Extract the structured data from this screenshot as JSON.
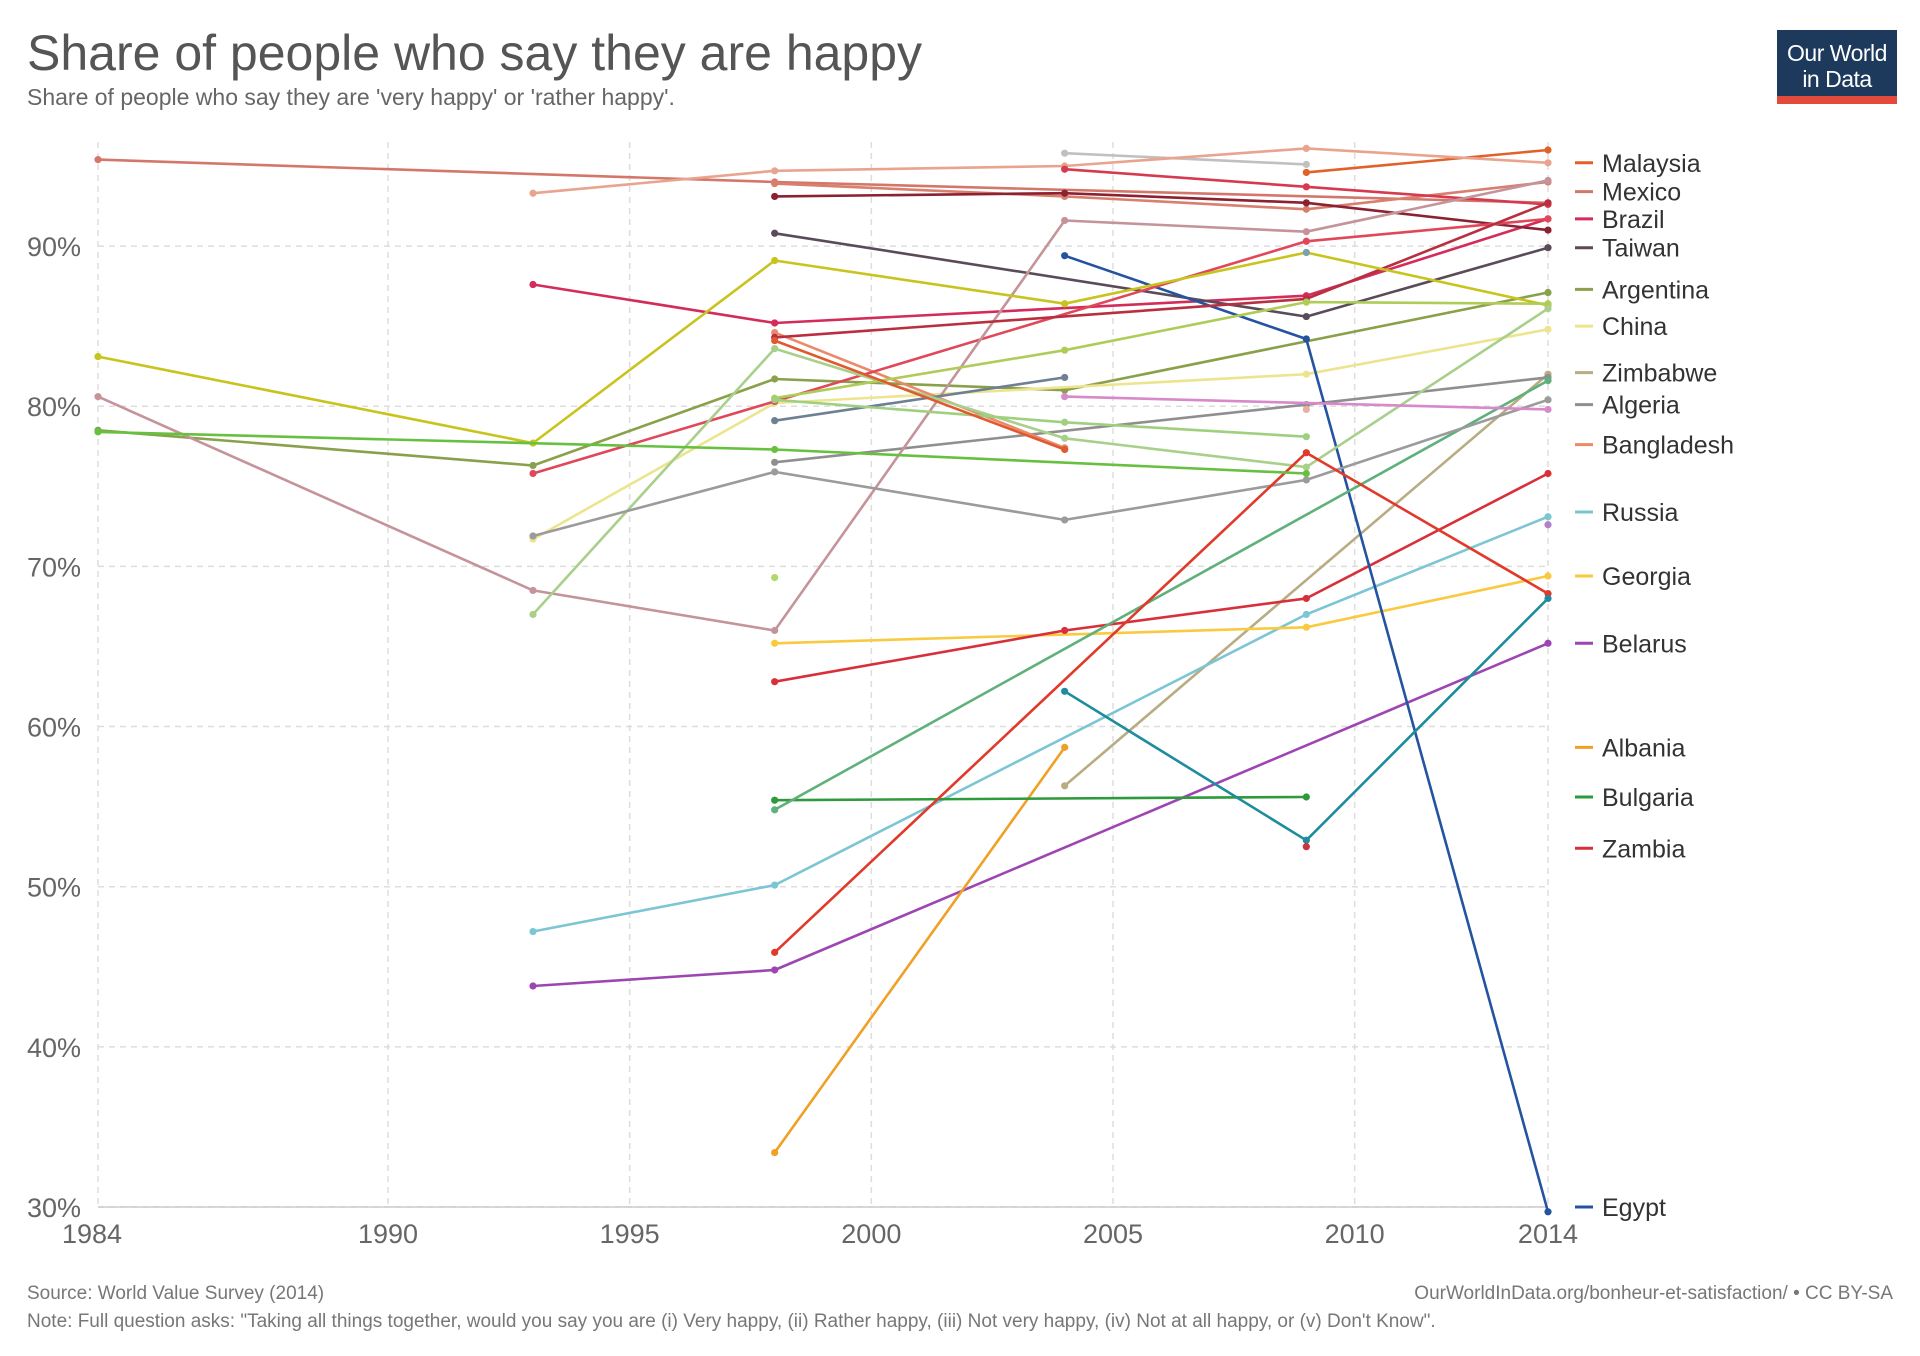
{
  "header": {
    "title": "Share of people who say they are happy",
    "subtitle": "Share of people who say they are 'very happy' or 'rather happy'.",
    "logo_line1": "Our World",
    "logo_line2": "in Data",
    "logo_colors": {
      "background": "#1d3a5c",
      "accent": "#e24b3b"
    }
  },
  "footer": {
    "source": "Source: World Value Survey (2014)",
    "url": "OurWorldInData.org/bonheur-et-satisfaction/ • CC BY-SA",
    "note": "Note: Full question asks: \"Taking all things together, would you say you are (i) Very happy, (ii) Rather happy, (iii) Not very happy, (iv) Not at all happy, or (v) Don't Know\"."
  },
  "chart_data": {
    "type": "line",
    "xlim": [
      1984,
      2014
    ],
    "ylim": [
      30,
      96
    ],
    "xticks": [
      1984,
      1990,
      1995,
      2000,
      2005,
      2010,
      2014
    ],
    "yticks": [
      30,
      40,
      50,
      60,
      70,
      80,
      90
    ],
    "ytick_labels": [
      "30%",
      "40%",
      "50%",
      "60%",
      "70%",
      "80%",
      "90%"
    ],
    "grid": true,
    "legend": "right, inline labels at series end",
    "series": [
      {
        "name": "Malaysia",
        "color": "#e0622a",
        "x": [
          2009,
          2014
        ],
        "y": [
          94.6,
          96.0
        ]
      },
      {
        "name": "Mexico",
        "color": "#d4776b",
        "x": [
          1984,
          1998,
          2014
        ],
        "y": [
          95.4,
          94.0,
          92.7
        ]
      },
      {
        "name": "Brazil",
        "color": "#d42c5a",
        "x": [
          1993,
          1998,
          2009,
          2014
        ],
        "y": [
          87.6,
          85.2,
          86.9,
          91.7
        ]
      },
      {
        "name": "Taiwan",
        "color": "#5b4b59",
        "x": [
          1998,
          2009,
          2014
        ],
        "y": [
          90.8,
          85.6,
          89.9
        ]
      },
      {
        "name": "Argentina",
        "color": "#8aa04a",
        "x": [
          1984,
          1993,
          1998,
          2004,
          2014
        ],
        "y": [
          78.5,
          76.3,
          81.7,
          81.0,
          87.1
        ]
      },
      {
        "name": "China",
        "color": "#ede48e",
        "x": [
          1993,
          1998,
          2009,
          2014
        ],
        "y": [
          71.7,
          80.2,
          82.0,
          84.8
        ]
      },
      {
        "name": "Zimbabwe",
        "color": "#b9ac83",
        "x": [
          2004,
          2014
        ],
        "y": [
          56.3,
          82.0
        ]
      },
      {
        "name": "Algeria",
        "color": "#8f8f8f",
        "x": [
          1998,
          2009,
          2014
        ],
        "y": [
          76.5,
          80.1,
          81.8
        ]
      },
      {
        "name": "Bangladesh",
        "color": "#eb8a6a",
        "x": [
          1998,
          2004
        ],
        "y": [
          84.6,
          77.4
        ]
      },
      {
        "name": "Russia",
        "color": "#7cc5d3",
        "x": [
          1993,
          1998,
          2009,
          2014
        ],
        "y": [
          47.2,
          50.1,
          67.0,
          73.1
        ]
      },
      {
        "name": "Georgia",
        "color": "#f9ca3f",
        "x": [
          1998,
          2009,
          2014
        ],
        "y": [
          65.2,
          66.2,
          69.4
        ]
      },
      {
        "name": "Belarus",
        "color": "#9d46b1",
        "x": [
          1993,
          1998,
          2014
        ],
        "y": [
          43.8,
          44.8,
          65.2
        ]
      },
      {
        "name": "Albania",
        "color": "#f0a024",
        "x": [
          1998,
          2004
        ],
        "y": [
          33.4,
          58.7
        ]
      },
      {
        "name": "Bulgaria",
        "color": "#2f9a3b",
        "x": [
          1998,
          2009
        ],
        "y": [
          55.4,
          55.6
        ]
      },
      {
        "name": "Zambia",
        "color": "#d8303a",
        "x": [
          1998,
          2004,
          2009,
          2014
        ],
        "y": [
          62.8,
          66.0,
          68.0,
          75.8
        ]
      },
      {
        "name": "Egypt",
        "color": "#2453a0",
        "x": [
          2004,
          2009,
          2014
        ],
        "y": [
          89.4,
          84.2,
          29.7
        ]
      },
      {
        "name": "",
        "color": "#c0c0c0",
        "x": [
          2004,
          2009
        ],
        "y": [
          95.8,
          95.1
        ]
      },
      {
        "name": "",
        "color": "#e8a48e",
        "x": [
          1993,
          1998,
          2004,
          2009,
          2014
        ],
        "y": [
          93.3,
          94.7,
          95.0,
          96.1,
          95.2
        ]
      },
      {
        "name": "",
        "color": "#d97f6e",
        "x": [
          1998,
          2004,
          2009,
          2014
        ],
        "y": [
          93.9,
          93.1,
          92.3,
          94.0
        ]
      },
      {
        "name": "",
        "color": "#d63a50",
        "x": [
          2004,
          2009,
          2014
        ],
        "y": [
          94.8,
          93.7,
          92.6
        ]
      },
      {
        "name": "",
        "color": "#8a2232",
        "x": [
          1998,
          2004,
          2009,
          2014
        ],
        "y": [
          93.1,
          93.3,
          92.7,
          91.0
        ]
      },
      {
        "name": "",
        "color": "#e0485a",
        "x": [
          1993,
          1998,
          2009,
          2014
        ],
        "y": [
          75.8,
          80.3,
          90.3,
          91.7
        ]
      },
      {
        "name": "",
        "color": "#c4949a",
        "x": [
          1984,
          1993,
          1998,
          2004,
          2009,
          2014
        ],
        "y": [
          80.6,
          68.5,
          66.0,
          91.6,
          90.9,
          94.1
        ]
      },
      {
        "name": "",
        "color": "#b8303f",
        "x": [
          1998,
          2009,
          2014
        ],
        "y": [
          84.3,
          86.7,
          92.7
        ]
      },
      {
        "name": "",
        "color": "#6f8094",
        "x": [
          1998,
          2004
        ],
        "y": [
          79.1,
          81.8
        ]
      },
      {
        "name": "",
        "color": "#c8c41e",
        "x": [
          1984,
          1993,
          1998,
          2004,
          2009,
          2014
        ],
        "y": [
          83.1,
          77.7,
          89.1,
          86.4,
          89.6,
          86.3
        ]
      },
      {
        "name": "",
        "color": "#b0cc58",
        "x": [
          1998,
          2004,
          2009,
          2014
        ],
        "y": [
          80.5,
          83.5,
          86.5,
          86.4
        ]
      },
      {
        "name": "",
        "color": "#a8d08a",
        "x": [
          1993,
          1998,
          2004,
          2009,
          2014
        ],
        "y": [
          67.0,
          83.6,
          78.0,
          76.2,
          86.1
        ]
      },
      {
        "name": "",
        "color": "#9ed080",
        "x": [
          1998,
          2004,
          2009
        ],
        "y": [
          80.4,
          79.0,
          78.1
        ]
      },
      {
        "name": "",
        "color": "#5fb07a",
        "x": [
          1998,
          2014
        ],
        "y": [
          54.8,
          81.6
        ]
      },
      {
        "name": "",
        "color": "#9b9b9b",
        "x": [
          1993,
          1998,
          2004,
          2009,
          2014
        ],
        "y": [
          71.9,
          75.9,
          72.9,
          75.4,
          80.4
        ]
      },
      {
        "name": "",
        "color": "#d889c9",
        "x": [
          2004,
          2014
        ],
        "y": [
          80.6,
          79.8
        ]
      },
      {
        "name": "",
        "color": "#e15a2f",
        "x": [
          1998,
          2004
        ],
        "y": [
          84.1,
          77.3
        ]
      },
      {
        "name": "",
        "color": "#e8b0a0",
        "x": [
          2009
        ],
        "y": [
          79.8
        ]
      },
      {
        "name": "",
        "color": "#e03a2a",
        "x": [
          1998,
          2009,
          2014
        ],
        "y": [
          45.9,
          77.1,
          68.3
        ]
      },
      {
        "name": "",
        "color": "#68c040",
        "x": [
          1984,
          1998,
          2009
        ],
        "y": [
          78.4,
          77.3,
          75.8
        ]
      },
      {
        "name": "",
        "color": "#b0d86a",
        "x": [
          1998
        ],
        "y": [
          69.3
        ]
      },
      {
        "name": "",
        "color": "#b080c8",
        "x": [
          2014
        ],
        "y": [
          72.6
        ]
      },
      {
        "name": "",
        "color": "#1e8c9c",
        "x": [
          2004,
          2009,
          2014
        ],
        "y": [
          62.2,
          52.9,
          68.0
        ]
      },
      {
        "name": "",
        "color": "#d03040",
        "x": [
          2009
        ],
        "y": [
          52.5
        ]
      },
      {
        "name": "",
        "color": "#7ba0b0",
        "x": [
          2009
        ],
        "y": [
          89.6
        ]
      }
    ],
    "labels": [
      {
        "text": "Malaysia",
        "y": 95.2,
        "color": "#e0622a"
      },
      {
        "text": "Mexico",
        "y": 93.4,
        "color": "#d4776b"
      },
      {
        "text": "Brazil",
        "y": 91.7,
        "color": "#d42c5a"
      },
      {
        "text": "Taiwan",
        "y": 89.9,
        "color": "#5b4b59"
      },
      {
        "text": "Argentina",
        "y": 87.3,
        "color": "#8aa04a"
      },
      {
        "text": "China",
        "y": 85.0,
        "color": "#ede48e"
      },
      {
        "text": "Zimbabwe",
        "y": 82.1,
        "color": "#b9ac83"
      },
      {
        "text": "Algeria",
        "y": 80.1,
        "color": "#8f8f8f"
      },
      {
        "text": "Bangladesh",
        "y": 77.6,
        "color": "#eb8a6a"
      },
      {
        "text": "Russia",
        "y": 73.4,
        "color": "#7cc5d3"
      },
      {
        "text": "Georgia",
        "y": 69.4,
        "color": "#f9ca3f"
      },
      {
        "text": "Belarus",
        "y": 65.2,
        "color": "#9d46b1"
      },
      {
        "text": "Albania",
        "y": 58.7,
        "color": "#f0a024"
      },
      {
        "text": "Bulgaria",
        "y": 55.6,
        "color": "#2f9a3b"
      },
      {
        "text": "Zambia",
        "y": 52.4,
        "color": "#d8303a"
      },
      {
        "text": "Egypt",
        "y": 30.0,
        "color": "#2453a0"
      }
    ]
  }
}
